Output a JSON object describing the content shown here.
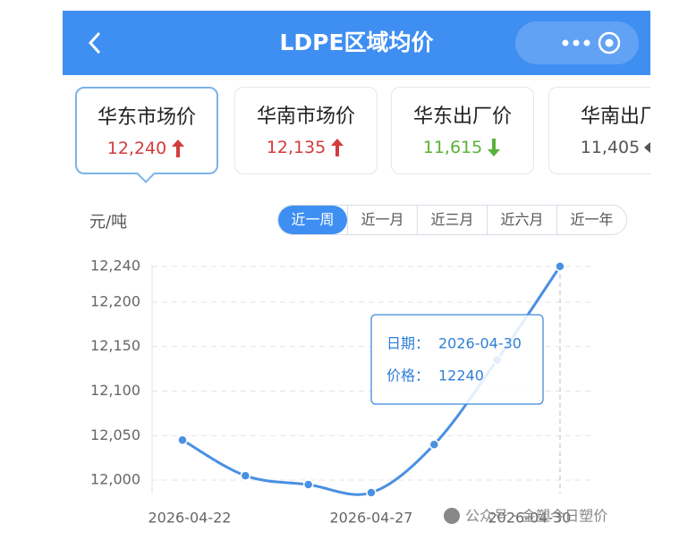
{
  "header": {
    "title": "LDPE区域均价"
  },
  "cards": [
    {
      "name": "华东市场价",
      "price": "12,240",
      "trend": "up"
    },
    {
      "name": "华南市场价",
      "price": "12,135",
      "trend": "up"
    },
    {
      "name": "华东出厂价",
      "price": "11,615",
      "trend": "down"
    },
    {
      "name": "华南出厂",
      "price": "11,405",
      "trend": "flat"
    }
  ],
  "active_card": 0,
  "unit": "元/吨",
  "tabs": [
    "近一周",
    "近一月",
    "近三月",
    "近六月",
    "近一年"
  ],
  "active_tab": 0,
  "chart_data": {
    "type": "line",
    "categories": [
      "2026-04-22",
      null,
      null,
      "2026-04-27",
      null,
      null,
      "2026-04-30"
    ],
    "values": [
      12045,
      12005,
      11995,
      11986,
      12040,
      12135,
      12240
    ],
    "color": "#4a90e2",
    "ylim": [
      11985,
      12240
    ],
    "yticks": [
      {
        "value": 12000,
        "label": "12,000"
      },
      {
        "value": 12050,
        "label": "12,050"
      },
      {
        "value": 12100,
        "label": "12,100"
      },
      {
        "value": 12150,
        "label": "12,150"
      },
      {
        "value": 12200,
        "label": "12,200"
      },
      {
        "value": 12240,
        "label": "12,240"
      }
    ],
    "grid": true
  },
  "tooltip": {
    "date_label": "日期：",
    "price_label": "价格："
  },
  "watermark": "公众号 · 金塑今日塑价"
}
